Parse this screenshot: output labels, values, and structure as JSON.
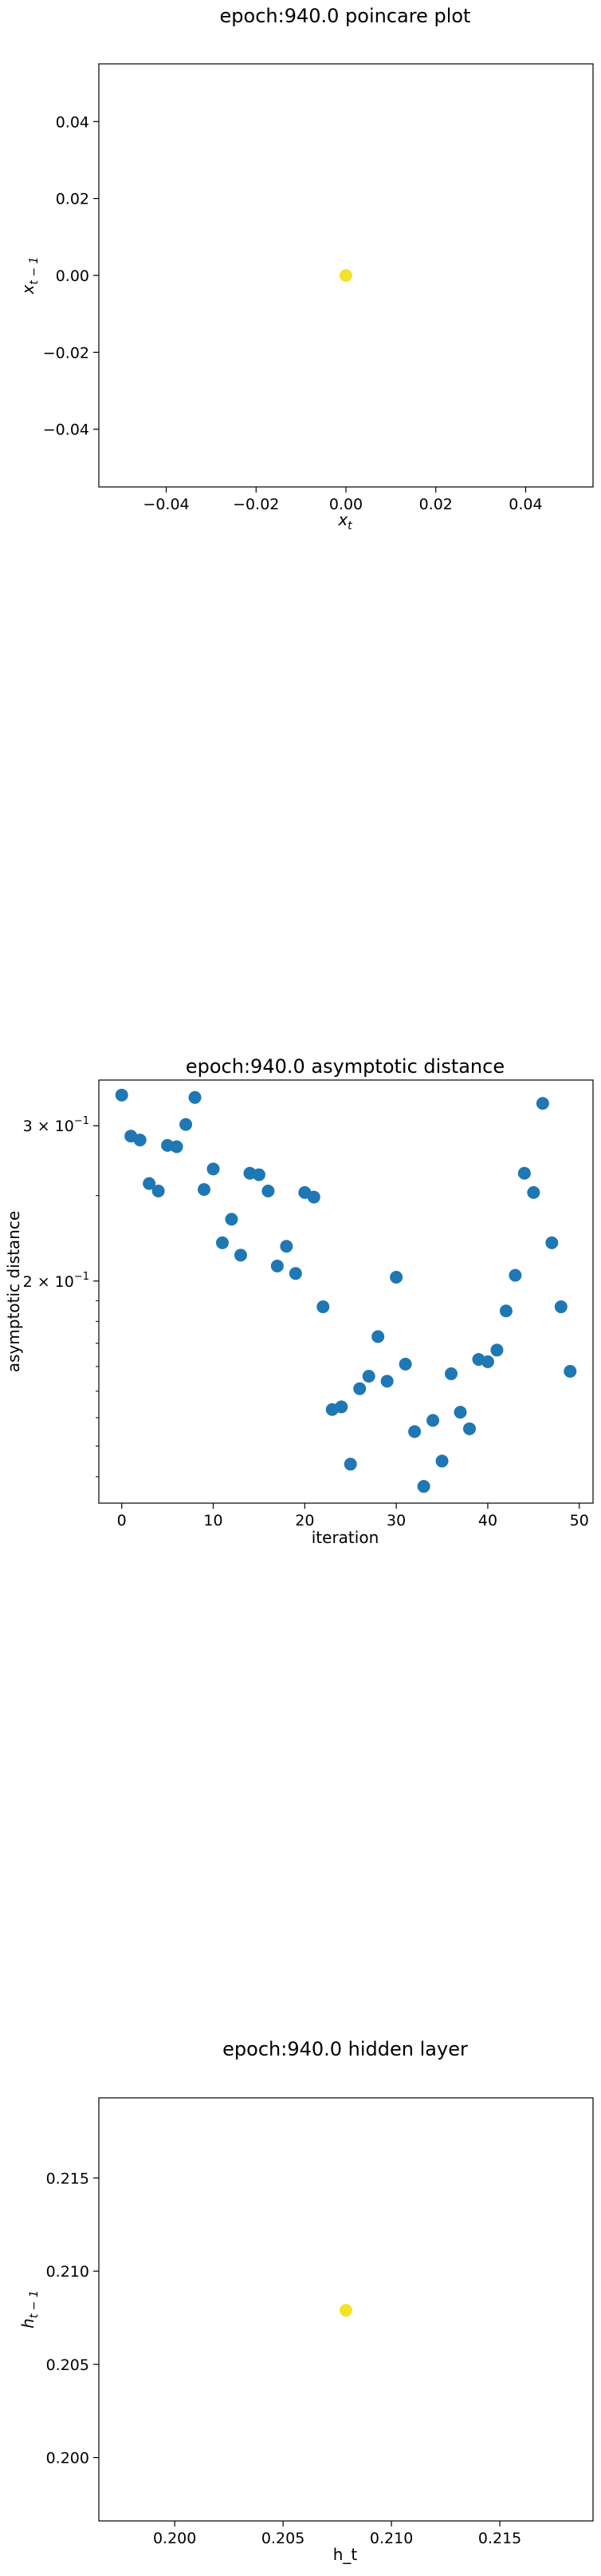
{
  "chart_data": [
    {
      "type": "scatter",
      "title": "epoch:940.0 poincare plot",
      "xlabel": "x",
      "xlabel_sub": "t",
      "ylabel": "x",
      "ylabel_sub": "t − 1",
      "xlim": [
        -0.055,
        0.055
      ],
      "ylim": [
        -0.055,
        0.055
      ],
      "xticks": [
        -0.04,
        -0.02,
        0.0,
        0.02,
        0.04
      ],
      "yticks": [
        -0.04,
        -0.02,
        0.0,
        0.02,
        0.04
      ],
      "xtick_labels": [
        "−0.04",
        "−0.02",
        "0.00",
        "0.02",
        "0.04"
      ],
      "ytick_labels": [
        "−0.04",
        "−0.02",
        "0.00",
        "0.02",
        "0.04"
      ],
      "points": [
        {
          "x": 0.0,
          "y": 0.0
        }
      ],
      "point_color": "#f2e32a",
      "grid": false
    },
    {
      "type": "scatter",
      "title": "epoch:940.0 asymptotic distance",
      "xlabel": "iteration",
      "ylabel": "asymptotic distance",
      "yscale": "log",
      "xlim": [
        -2.5,
        51.5
      ],
      "ylim": [
        0.112,
        0.338
      ],
      "xticks": [
        0,
        10,
        20,
        30,
        40,
        50
      ],
      "xtick_labels": [
        "0",
        "10",
        "20",
        "30",
        "40",
        "50"
      ],
      "yticks": [
        0.2,
        0.3
      ],
      "ytick_labels": [
        {
          "base": "2 × 10",
          "exp": "−1"
        },
        {
          "base": "3 × 10",
          "exp": "−1"
        }
      ],
      "x": [
        0,
        1,
        2,
        3,
        4,
        5,
        6,
        7,
        8,
        9,
        10,
        11,
        12,
        13,
        14,
        15,
        16,
        17,
        18,
        19,
        20,
        21,
        22,
        23,
        24,
        25,
        26,
        27,
        28,
        29,
        30,
        31,
        32,
        33,
        34,
        35,
        36,
        37,
        38,
        39,
        40,
        41,
        42,
        43,
        44,
        45,
        46,
        47,
        48,
        49
      ],
      "y": [
        0.325,
        0.292,
        0.289,
        0.258,
        0.253,
        0.285,
        0.284,
        0.301,
        0.323,
        0.254,
        0.268,
        0.221,
        0.235,
        0.214,
        0.265,
        0.264,
        0.253,
        0.208,
        0.219,
        0.204,
        0.252,
        0.249,
        0.187,
        0.143,
        0.144,
        0.124,
        0.151,
        0.156,
        0.173,
        0.154,
        0.202,
        0.161,
        0.135,
        0.117,
        0.139,
        0.125,
        0.157,
        0.142,
        0.136,
        0.163,
        0.162,
        0.167,
        0.185,
        0.203,
        0.265,
        0.252,
        0.318,
        0.221,
        0.187,
        0.158
      ],
      "point_color": "#1f77b4",
      "grid": false
    },
    {
      "type": "scatter",
      "title": "epoch:940.0 hidden layer",
      "xlabel": "h_t",
      "ylabel": "h",
      "ylabel_sub": "t − 1",
      "xlim": [
        0.1965,
        0.2193
      ],
      "ylim": [
        0.1966,
        0.2193
      ],
      "xticks": [
        0.2,
        0.205,
        0.21,
        0.215
      ],
      "yticks": [
        0.2,
        0.205,
        0.21,
        0.215
      ],
      "xtick_labels": [
        "0.200",
        "0.205",
        "0.210",
        "0.215"
      ],
      "ytick_labels": [
        "0.200",
        "0.205",
        "0.210",
        "0.215"
      ],
      "points": [
        {
          "x": 0.2079,
          "y": 0.2079
        }
      ],
      "point_color": "#f2e32a",
      "grid": false
    }
  ]
}
